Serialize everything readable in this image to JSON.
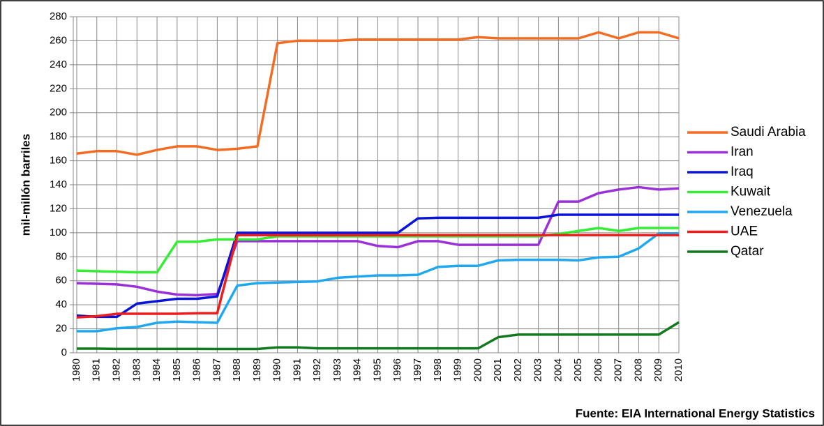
{
  "chart_data": {
    "type": "line",
    "y_label": "mil-millón barriles",
    "source": "Fuente: EIA International Energy Statistics",
    "categories": [
      "1980",
      "1981",
      "1982",
      "1983",
      "1984",
      "1985",
      "1986",
      "1987",
      "1988",
      "1989",
      "1990",
      "1991",
      "1992",
      "1993",
      "1994",
      "1995",
      "1996",
      "1997",
      "1998",
      "1999",
      "2000",
      "2001",
      "2002",
      "2003",
      "2004",
      "2005",
      "2006",
      "2007",
      "2008",
      "2009",
      "2010"
    ],
    "ylim": [
      0,
      280
    ],
    "yticks": [
      0,
      20,
      40,
      60,
      80,
      100,
      120,
      140,
      160,
      180,
      200,
      220,
      240,
      260,
      280
    ],
    "grid": true,
    "legend": "right",
    "series": [
      {
        "name": "Saudi Arabia",
        "color": "#f36c21",
        "values": [
          166,
          168,
          168,
          165,
          169,
          172,
          172,
          169,
          170,
          172,
          258,
          260,
          260,
          260,
          261,
          261,
          261,
          261,
          261,
          261,
          263,
          262,
          262,
          262,
          262,
          262,
          267,
          262,
          267,
          267,
          262
        ]
      },
      {
        "name": "Iran",
        "color": "#9b30d9",
        "values": [
          58,
          57.5,
          57,
          55,
          51,
          48.5,
          48,
          49,
          93,
          93,
          93,
          93,
          93,
          93,
          93,
          89,
          88,
          93,
          93,
          90,
          90,
          90,
          90,
          90,
          126,
          126,
          133,
          136,
          138,
          136,
          137
        ]
      },
      {
        "name": "Iraq",
        "color": "#0a14d8",
        "values": [
          31,
          30,
          30,
          41,
          43,
          45,
          45,
          47,
          100,
          100,
          100,
          100,
          100,
          100,
          100,
          100,
          100,
          112,
          112.5,
          112.5,
          112.5,
          112.5,
          112.5,
          112.5,
          115,
          115,
          115,
          115,
          115,
          115,
          115
        ]
      },
      {
        "name": "Kuwait",
        "color": "#33ee33",
        "values": [
          68.5,
          68,
          67.5,
          67,
          67,
          92.5,
          92.5,
          94.5,
          94.5,
          94.5,
          97,
          97,
          97,
          97,
          97,
          97,
          97,
          97,
          97,
          97,
          97,
          97,
          97,
          97,
          99,
          101.5,
          104,
          101.5,
          104,
          104,
          104
        ]
      },
      {
        "name": "Venezuela",
        "color": "#1fa8ef",
        "values": [
          18,
          18,
          20.5,
          21.5,
          25,
          26,
          25.5,
          25,
          56,
          58,
          58.5,
          59,
          59.5,
          62.5,
          63.5,
          64.5,
          64.5,
          65,
          71.5,
          72.5,
          72.5,
          77,
          77.5,
          77.5,
          77.5,
          77,
          79.5,
          80,
          87,
          99.5,
          99.5
        ]
      },
      {
        "name": "UAE",
        "color": "#ee1c1c",
        "values": [
          29.5,
          30.5,
          32.5,
          32.5,
          32.5,
          32.5,
          33,
          33,
          98,
          98,
          98,
          98,
          98,
          98,
          98,
          98,
          98,
          98,
          98,
          98,
          98,
          98,
          98,
          98,
          98,
          98,
          98,
          98,
          98,
          98,
          98
        ]
      },
      {
        "name": "Qatar",
        "color": "#117a1e",
        "values": [
          3.5,
          3.5,
          3.3,
          3.3,
          3.3,
          3.3,
          3.3,
          3.2,
          3.2,
          3.2,
          4.5,
          4.5,
          3.7,
          3.7,
          3.7,
          3.7,
          3.7,
          3.7,
          3.7,
          3.7,
          3.7,
          13,
          15.2,
          15.2,
          15.2,
          15.2,
          15.2,
          15.2,
          15.2,
          15.2,
          25.4
        ]
      }
    ]
  }
}
